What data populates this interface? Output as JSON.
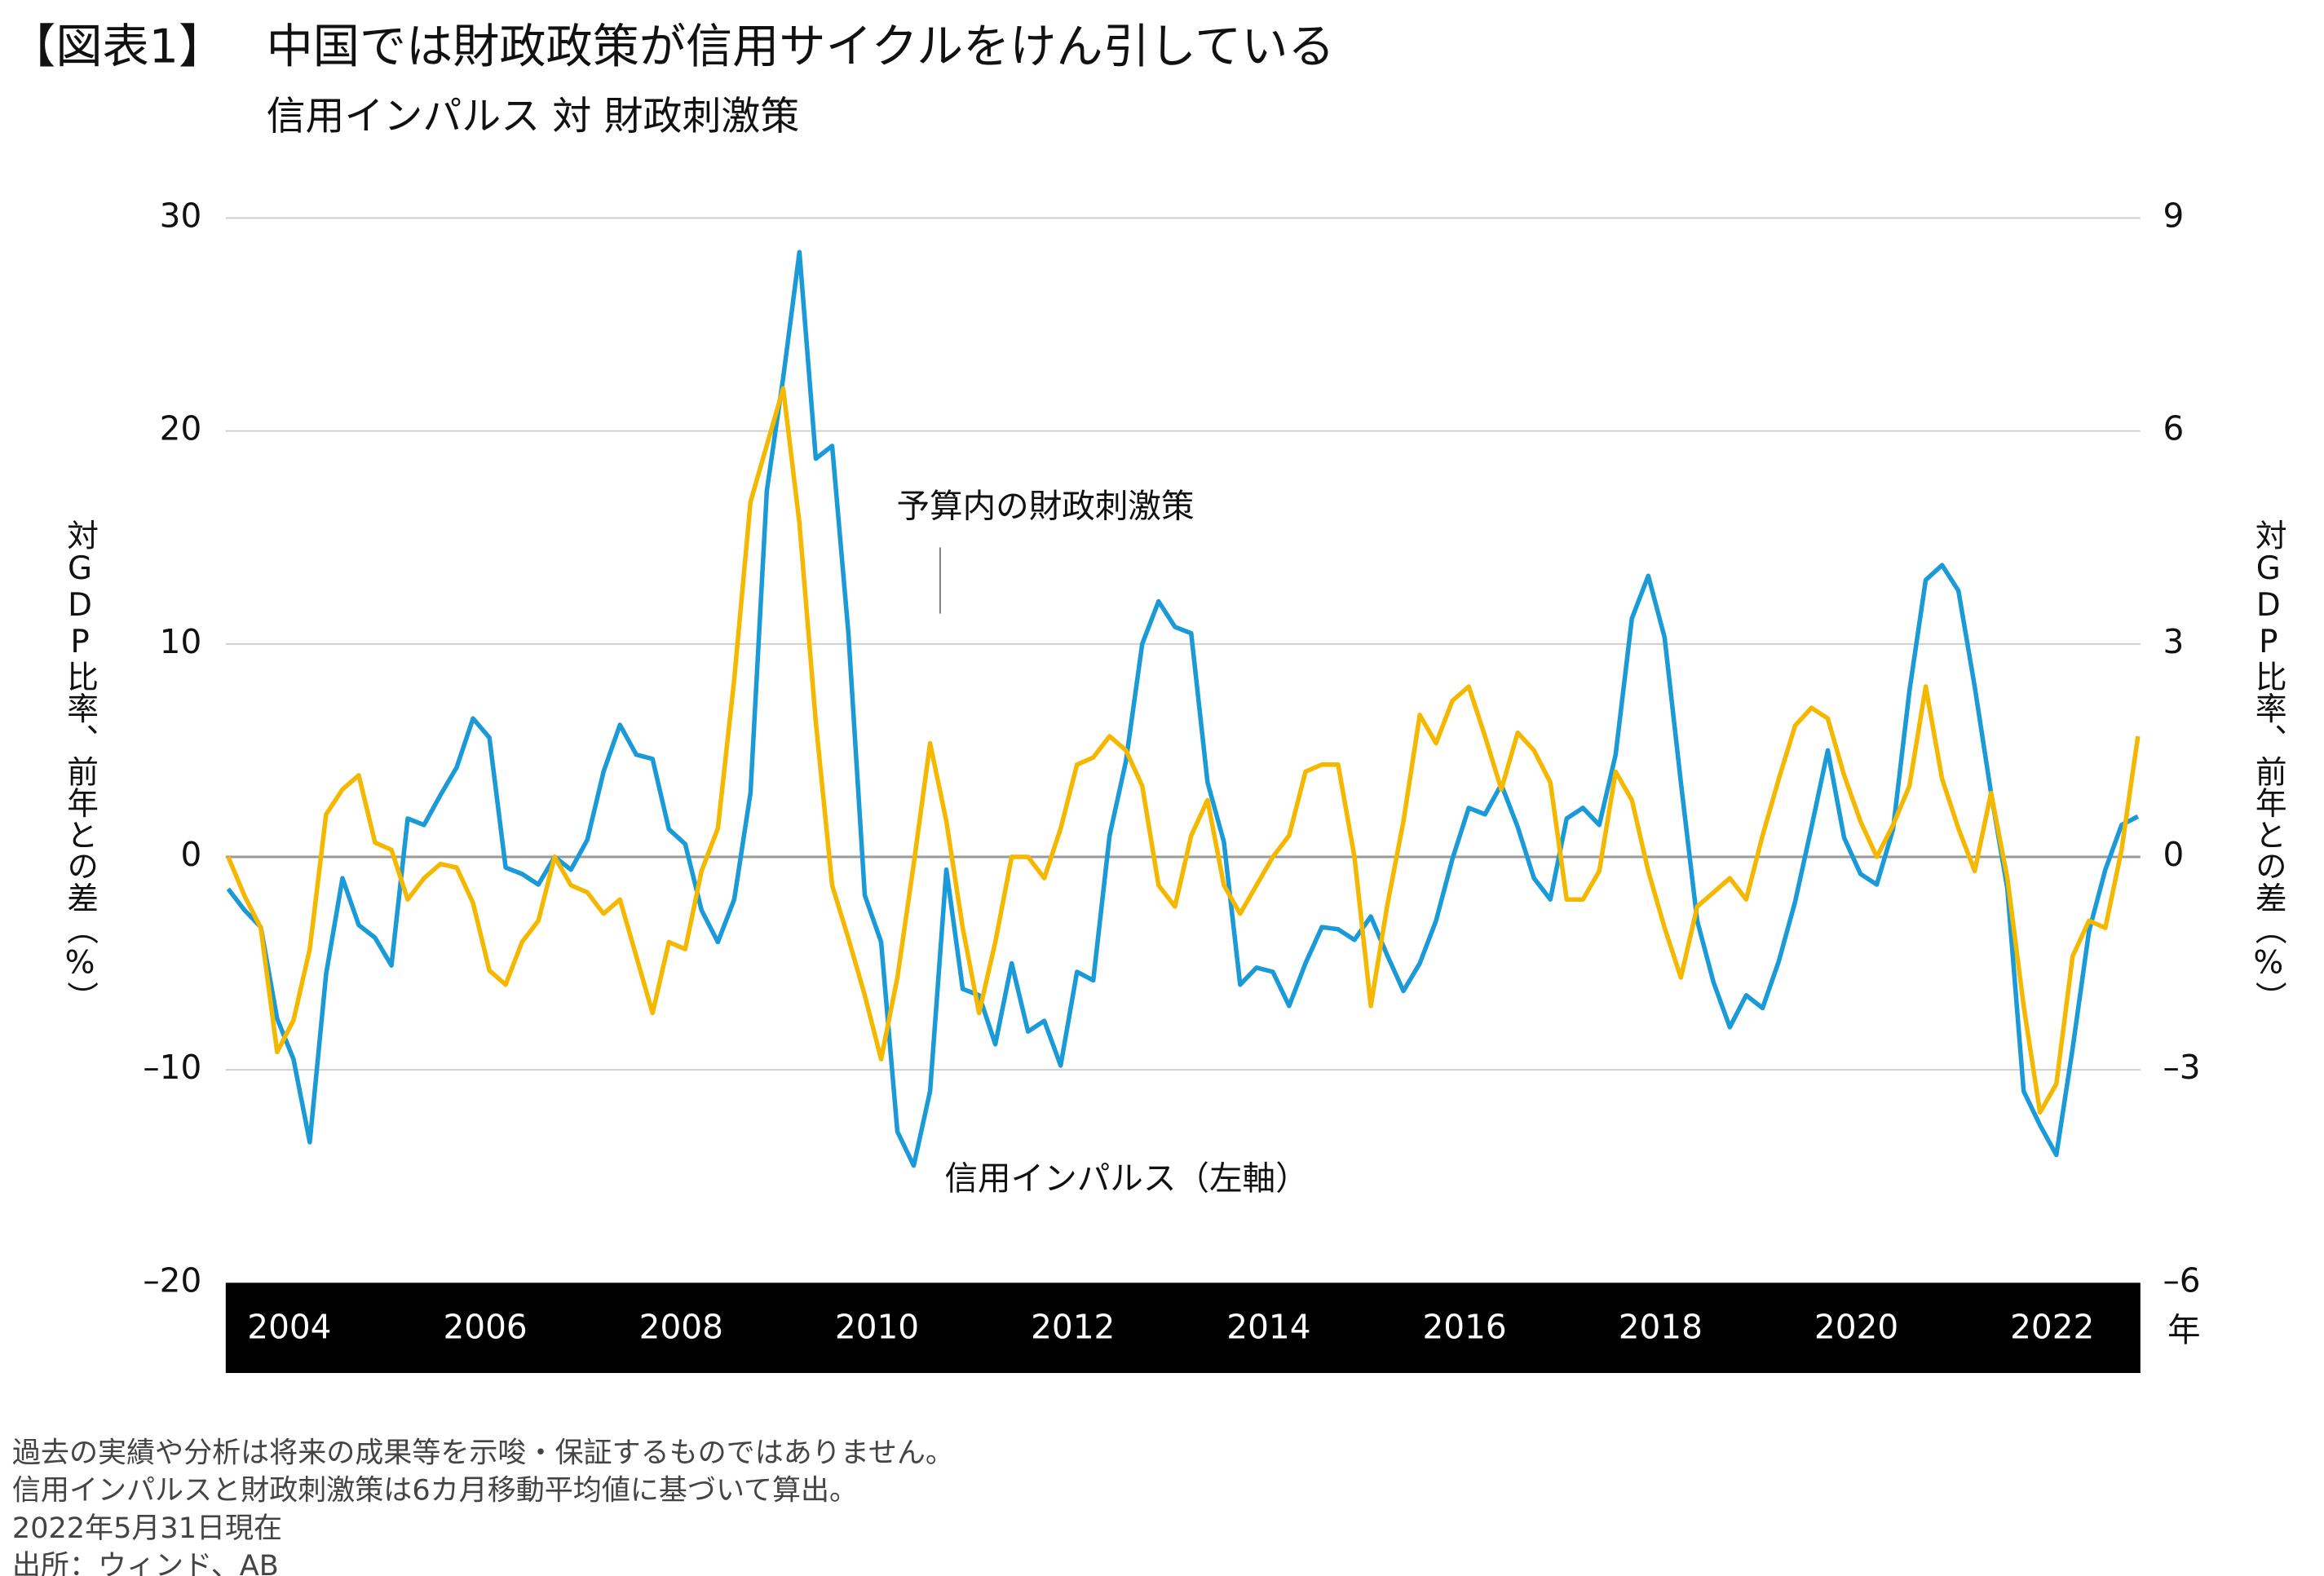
{
  "chart_data": {
    "type": "line",
    "figure_label": "【図表1】",
    "title": "中国では財政政策が信用サイクルをけん引している",
    "subtitle": "信用インパルス 対 財政刺激策",
    "ylabel": "対GDP比率、前年との差（%）",
    "y2label": "対GDP比率、前年との差（%）",
    "xlabel": "年",
    "grid": true,
    "xlim": [
      2003.35,
      2022.9
    ],
    "xticks": [
      2004,
      2006,
      2008,
      2010,
      2012,
      2014,
      2016,
      2018,
      2020,
      2022
    ],
    "ylim": [
      -20,
      30
    ],
    "yticks": [
      {
        "value": -20,
        "label": "–20"
      },
      {
        "value": -10,
        "label": "–10"
      },
      0,
      10,
      20,
      30
    ],
    "y2lim": [
      -6,
      9
    ],
    "y2ticks": [
      {
        "value": -6,
        "label": "–6"
      },
      {
        "value": -3,
        "label": "–3"
      },
      0,
      3,
      6,
      9
    ],
    "x": [
      2003.375,
      2003.542,
      2003.708,
      2003.875,
      2004.042,
      2004.208,
      2004.375,
      2004.542,
      2004.708,
      2004.875,
      2005.042,
      2005.208,
      2005.375,
      2005.542,
      2005.708,
      2005.875,
      2006.042,
      2006.208,
      2006.375,
      2006.542,
      2006.708,
      2006.875,
      2007.042,
      2007.208,
      2007.375,
      2007.542,
      2007.708,
      2007.875,
      2008.042,
      2008.208,
      2008.375,
      2008.542,
      2008.708,
      2008.875,
      2009.042,
      2009.208,
      2009.375,
      2009.542,
      2009.708,
      2009.875,
      2010.042,
      2010.208,
      2010.375,
      2010.542,
      2010.708,
      2010.875,
      2011.042,
      2011.208,
      2011.375,
      2011.542,
      2011.708,
      2011.875,
      2012.042,
      2012.208,
      2012.375,
      2012.542,
      2012.708,
      2012.875,
      2013.042,
      2013.208,
      2013.375,
      2013.542,
      2013.708,
      2013.875,
      2014.042,
      2014.208,
      2014.375,
      2014.542,
      2014.708,
      2014.875,
      2015.042,
      2015.208,
      2015.375,
      2015.542,
      2015.708,
      2015.875,
      2016.042,
      2016.208,
      2016.375,
      2016.542,
      2016.708,
      2016.875,
      2017.042,
      2017.208,
      2017.375,
      2017.542,
      2017.708,
      2017.875,
      2018.042,
      2018.208,
      2018.375,
      2018.542,
      2018.708,
      2018.875,
      2019.042,
      2019.208,
      2019.375,
      2019.542,
      2019.708,
      2019.875,
      2020.042,
      2020.208,
      2020.375,
      2020.542,
      2020.708,
      2020.875,
      2021.042,
      2021.208,
      2021.375,
      2021.542,
      2021.708,
      2021.875,
      2022.042,
      2022.208,
      2022.375,
      2022.542,
      2022.708,
      2022.875
    ],
    "series": [
      {
        "name": "信用インパルス（左軸）",
        "color": "#1a9ad6",
        "values": [
          -1.5,
          -2.5,
          -3.3,
          -7.6,
          -9.5,
          -13.4,
          -5.5,
          -1,
          -3.2,
          -3.8,
          -5.1,
          1.8,
          1.5,
          2.9,
          4.2,
          6.5,
          5.6,
          -0.5,
          -0.8,
          -1.3,
          0,
          -0.6,
          0.8,
          4,
          6.2,
          4.8,
          4.6,
          1.3,
          0.6,
          -2.5,
          -4,
          -2,
          3,
          17.2,
          22.5,
          28.4,
          18.7,
          19.3,
          10.5,
          -1.8,
          -4,
          -12.9,
          -14.5,
          -11,
          -0.6,
          -6.2,
          -6.5,
          -8.8,
          -5,
          -8.2,
          -7.7,
          -9.8,
          -5.4,
          -5.8,
          1,
          4.5,
          10,
          12,
          10.8,
          10.5,
          3.5,
          0.7,
          -6,
          -5.2,
          -5.4,
          -7,
          -5,
          -3.3,
          -3.4,
          -3.9,
          -2.8,
          -4.6,
          -6.3,
          -5,
          -3,
          -0.1,
          2.3,
          2,
          3.4,
          1.4,
          -1,
          -2,
          1.8,
          2.3,
          1.5,
          4.8,
          11.2,
          13.2,
          10.3,
          3.5,
          -3,
          -5.9,
          -8,
          -6.5,
          -7.1,
          -4.9,
          -2.1,
          1.4,
          5,
          0.9,
          -0.8,
          -1.3,
          1.3,
          7.8,
          13,
          13.7,
          12.5,
          8,
          3,
          -1.5,
          -11,
          -12.6,
          -14,
          -9,
          -3.5,
          -0.6,
          1.5,
          1.9
        ]
      },
      {
        "name": "予算内の財政刺激策",
        "color": "#f5b800",
        "axis": "y2",
        "values": [
          0,
          -0.55,
          -1,
          -2.75,
          -2.3,
          -1.3,
          0.6,
          0.95,
          1.15,
          0.2,
          0.1,
          -0.6,
          -0.3,
          -0.1,
          -0.15,
          -0.65,
          -1.6,
          -1.8,
          -1.2,
          -0.9,
          0,
          -0.4,
          -0.5,
          -0.8,
          -0.6,
          -1.4,
          -2.2,
          -1.2,
          -1.3,
          -0.2,
          0.4,
          2.5,
          5,
          5.8,
          6.6,
          4.7,
          1.9,
          -0.4,
          -1.15,
          -1.95,
          -2.85,
          -1.7,
          -0.1,
          1.6,
          0.5,
          -1,
          -2.2,
          -1.2,
          0,
          0,
          -0.3,
          0.4,
          1.3,
          1.4,
          1.7,
          1.5,
          1,
          -0.4,
          -0.7,
          0.3,
          0.8,
          -0.4,
          -0.8,
          -0.4,
          0,
          0.3,
          1.2,
          1.3,
          1.3,
          0,
          -2.1,
          -0.7,
          0.5,
          2,
          1.6,
          2.2,
          2.4,
          1.7,
          0.95,
          1.75,
          1.5,
          1.05,
          -0.6,
          -0.6,
          -0.2,
          1.2,
          0.8,
          -0.2,
          -1,
          -1.7,
          -0.7,
          -0.5,
          -0.3,
          -0.6,
          0.3,
          1.1,
          1.85,
          2.1,
          1.95,
          1.15,
          0.5,
          0,
          0.45,
          1,
          2.4,
          1.1,
          0.4,
          -0.2,
          0.9,
          -0.3,
          -2.1,
          -3.6,
          -3.2,
          -1.4,
          -0.9,
          -1,
          0.1,
          1.7
        ]
      }
    ],
    "notes": [
      "過去の実績や分析は将来の成果等を示唆・保証するものではありません。",
      "信用インパルスと財政刺激策は6カ月移動平均値に基づいて算出。",
      "2022年5月31日現在",
      "出所：ウィンド、AB"
    ]
  }
}
